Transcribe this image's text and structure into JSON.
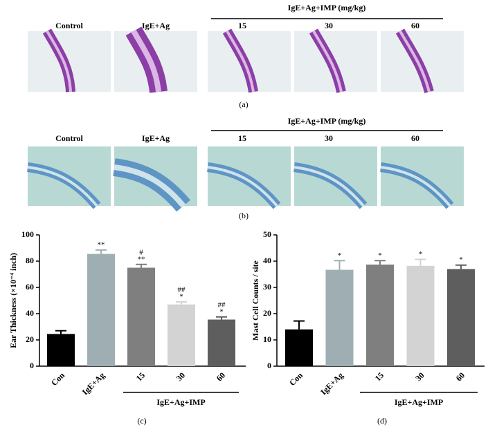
{
  "image_panels": [
    {
      "group_label": "IgE+Ag+IMP (mg/kg)",
      "labels": [
        "Control",
        "IgE+Ag",
        "15",
        "30",
        "60"
      ],
      "caption": "(a)"
    },
    {
      "group_label": "IgE+Ag+IMP (mg/kg)",
      "labels": [
        "Control",
        "IgE+Ag",
        "15",
        "30",
        "60"
      ],
      "caption": "(b)"
    }
  ],
  "chart_data": [
    {
      "type": "bar",
      "ylabel": "Ear Thickness (×10⁻⁴ inch)",
      "categories": [
        "Con",
        "IgE+Ag",
        "15",
        "30",
        "60"
      ],
      "values": [
        24.5,
        85.5,
        75,
        47,
        35.5
      ],
      "errors": [
        2.5,
        3,
        2.5,
        2,
        2
      ],
      "colors": [
        "#000000",
        "#9eaeb3",
        "#7f7f7f",
        "#d3d3d3",
        "#5e5e5e"
      ],
      "annotations": [
        {
          "category": "IgE+Ag",
          "lines": [
            "**"
          ]
        },
        {
          "category": "15",
          "lines": [
            "#",
            "**"
          ]
        },
        {
          "category": "30",
          "lines": [
            "##",
            "*"
          ]
        },
        {
          "category": "60",
          "lines": [
            "##",
            "*"
          ]
        }
      ],
      "group_label": "IgE+Ag+IMP",
      "caption": "(c)",
      "ylim": [
        0,
        100
      ],
      "yticks": [
        0,
        20,
        40,
        60,
        80,
        100
      ]
    },
    {
      "type": "bar",
      "ylabel": "Mast Cell Counts / site",
      "categories": [
        "Con",
        "IgE+Ag",
        "15",
        "30",
        "60"
      ],
      "values": [
        14,
        36.7,
        38.7,
        38.2,
        37
      ],
      "errors": [
        3.2,
        3.5,
        1.5,
        2.5,
        1.5
      ],
      "colors": [
        "#000000",
        "#9eaeb3",
        "#7f7f7f",
        "#d3d3d3",
        "#5e5e5e"
      ],
      "annotations": [
        {
          "category": "IgE+Ag",
          "lines": [
            "*"
          ]
        },
        {
          "category": "15",
          "lines": [
            "*"
          ]
        },
        {
          "category": "30",
          "lines": [
            "*"
          ]
        },
        {
          "category": "60",
          "lines": [
            "*"
          ]
        }
      ],
      "group_label": "IgE+Ag+IMP",
      "caption": "(d)",
      "ylim": [
        0,
        50
      ],
      "yticks": [
        0,
        10,
        20,
        30,
        40,
        50
      ]
    }
  ]
}
